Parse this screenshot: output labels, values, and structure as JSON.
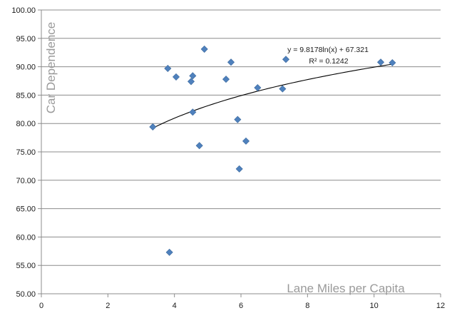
{
  "chart_data": {
    "type": "scatter",
    "title": "",
    "xlabel": "Lane Miles per Capita",
    "ylabel": "Car Dependence",
    "xlim": [
      0,
      12
    ],
    "ylim": [
      50,
      100
    ],
    "x_ticks": [
      "0",
      "2",
      "4",
      "6",
      "8",
      "10",
      "12"
    ],
    "y_ticks": [
      "50.00",
      "55.00",
      "60.00",
      "65.00",
      "70.00",
      "75.00",
      "80.00",
      "85.00",
      "90.00",
      "95.00",
      "100.00"
    ],
    "grid": "horizontal",
    "legend": "none",
    "marker": "diamond",
    "marker_color": "#4f81bd",
    "points": [
      {
        "x": 3.35,
        "y": 79.4
      },
      {
        "x": 3.8,
        "y": 89.7
      },
      {
        "x": 3.85,
        "y": 57.3
      },
      {
        "x": 4.05,
        "y": 88.2
      },
      {
        "x": 4.5,
        "y": 87.4
      },
      {
        "x": 4.55,
        "y": 88.4
      },
      {
        "x": 4.55,
        "y": 82.0
      },
      {
        "x": 4.75,
        "y": 76.1
      },
      {
        "x": 4.9,
        "y": 93.1
      },
      {
        "x": 5.55,
        "y": 87.8
      },
      {
        "x": 5.7,
        "y": 90.8
      },
      {
        "x": 5.9,
        "y": 80.7
      },
      {
        "x": 5.95,
        "y": 72.0
      },
      {
        "x": 6.15,
        "y": 76.9
      },
      {
        "x": 6.5,
        "y": 86.3
      },
      {
        "x": 7.25,
        "y": 86.1
      },
      {
        "x": 7.35,
        "y": 91.3
      },
      {
        "x": 10.2,
        "y": 90.8
      },
      {
        "x": 10.55,
        "y": 90.7
      }
    ],
    "trendline": {
      "type": "logarithmic",
      "a": 9.8178,
      "b": 67.321,
      "x_range": [
        3.35,
        10.55
      ],
      "color": "#000000",
      "equation": "y = 9.8178ln(x) + 67.321",
      "r_squared": "R² = 0.1242"
    }
  }
}
